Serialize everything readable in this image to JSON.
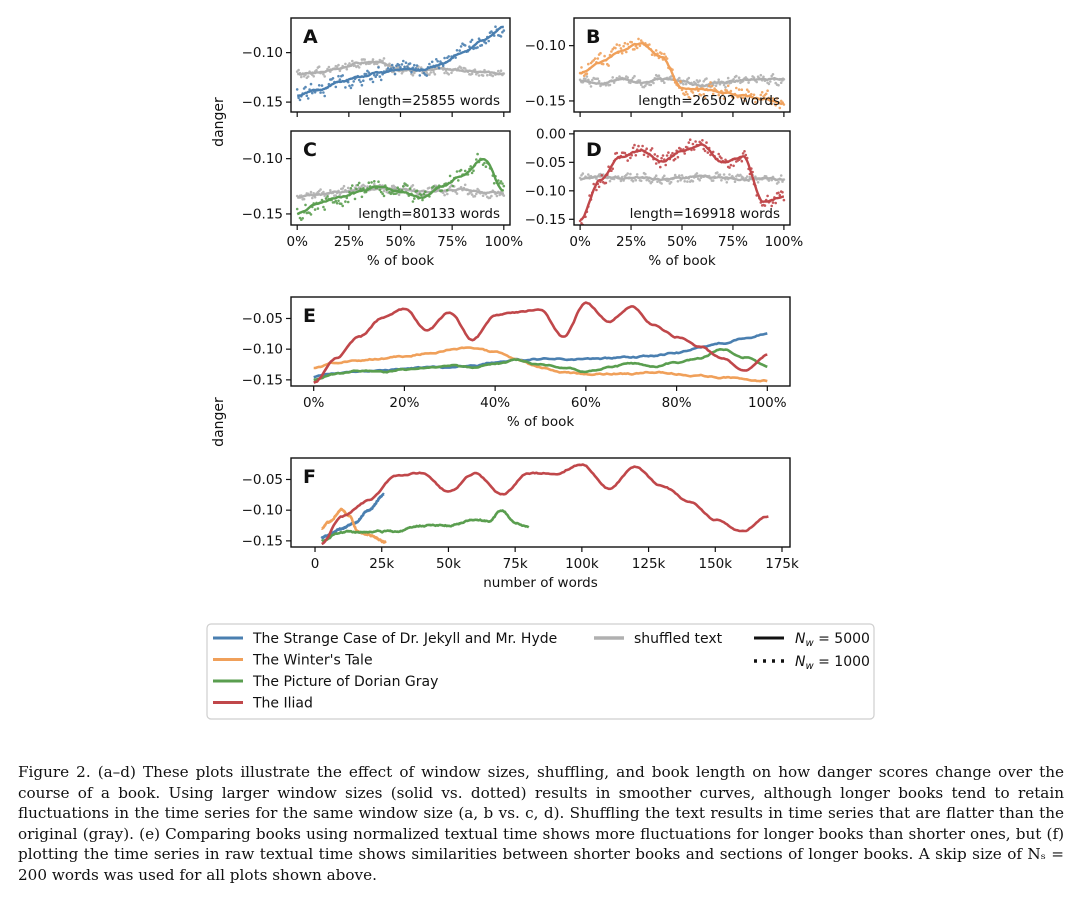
{
  "figure": {
    "ylabel_top": "danger",
    "ylabel_mid": "danger",
    "caption": "Figure 2. (a–d) These plots illustrate the effect of window sizes, shuffling, and book length on how danger scores change over the course of a book. Using larger window sizes (solid vs. dotted) results in smoother curves, although longer books tend to retain fluctuations in the time series for the same window size (a, b vs. c, d). Shuffling the text results in time series that are flatter than the original (gray). (e) Comparing books using normalized textual time shows more fluctuations for longer books than shorter ones, but (f) plotting the time series in raw textual time shows similarities between shorter books and sections of longer books. A skip size of Nₛ = 200 words was used for all plots shown above.",
    "legend": {
      "books": [
        {
          "label": "The Strange Case of Dr. Jekyll and Mr. Hyde",
          "color": "#4a7fb0"
        },
        {
          "label": "The Winter's Tale",
          "color": "#f0a05a"
        },
        {
          "label": "The Picture of Dorian Gray",
          "color": "#5a9e4f"
        },
        {
          "label": "The Iliad",
          "color": "#c0474a"
        }
      ],
      "shuffled": {
        "label": "shuffled text",
        "color": "#b0b0b0"
      },
      "solid": "N_w = 5000",
      "dotted": "N_w = 1000"
    }
  },
  "chart_data": [
    {
      "panel": "A",
      "type": "line",
      "note": "length=25855 words",
      "xlabel": "",
      "ylabel": "danger",
      "ylim": [
        -0.16,
        -0.065
      ],
      "x": [
        0,
        10,
        20,
        30,
        40,
        50,
        60,
        70,
        80,
        90,
        100
      ],
      "series": [
        {
          "name": "The Strange Case of Dr. Jekyll and Mr. Hyde",
          "values": [
            -0.143,
            -0.138,
            -0.13,
            -0.125,
            -0.12,
            -0.117,
            -0.117,
            -0.112,
            -0.1,
            -0.088,
            -0.074
          ]
        },
        {
          "name": "shuffled text",
          "values": [
            -0.122,
            -0.12,
            -0.116,
            -0.11,
            -0.11,
            -0.118,
            -0.118,
            -0.116,
            -0.118,
            -0.12,
            -0.121
          ]
        }
      ]
    },
    {
      "panel": "B",
      "type": "line",
      "note": "length=26502 words",
      "xlabel": "",
      "ylabel": "",
      "ylim": [
        -0.16,
        -0.075
      ],
      "x": [
        0,
        10,
        20,
        30,
        40,
        50,
        60,
        70,
        80,
        90,
        100
      ],
      "series": [
        {
          "name": "The Winter's Tale",
          "values": [
            -0.125,
            -0.115,
            -0.105,
            -0.098,
            -0.11,
            -0.138,
            -0.14,
            -0.142,
            -0.145,
            -0.148,
            -0.152
          ]
        },
        {
          "name": "shuffled text",
          "values": [
            -0.132,
            -0.134,
            -0.13,
            -0.133,
            -0.13,
            -0.132,
            -0.136,
            -0.133,
            -0.131,
            -0.13,
            -0.13
          ]
        }
      ]
    },
    {
      "panel": "C",
      "type": "line",
      "note": "length=80133 words",
      "xlabel": "% of book",
      "ylabel": "danger",
      "ylim": [
        -0.16,
        -0.075
      ],
      "x": [
        0,
        10,
        20,
        30,
        40,
        50,
        60,
        70,
        80,
        90,
        100
      ],
      "series": [
        {
          "name": "The Picture of Dorian Gray",
          "values": [
            -0.15,
            -0.14,
            -0.135,
            -0.13,
            -0.125,
            -0.13,
            -0.135,
            -0.125,
            -0.115,
            -0.1,
            -0.128
          ]
        },
        {
          "name": "shuffled text",
          "values": [
            -0.135,
            -0.133,
            -0.13,
            -0.128,
            -0.127,
            -0.128,
            -0.13,
            -0.129,
            -0.128,
            -0.13,
            -0.131
          ]
        }
      ]
    },
    {
      "panel": "D",
      "type": "line",
      "note": "length=169918 words",
      "xlabel": "% of book",
      "ylabel": "",
      "ylim": [
        -0.16,
        0.005
      ],
      "x": [
        0,
        10,
        20,
        30,
        40,
        50,
        60,
        70,
        80,
        90,
        100
      ],
      "series": [
        {
          "name": "The Iliad",
          "values": [
            -0.15,
            -0.08,
            -0.04,
            -0.03,
            -0.05,
            -0.03,
            -0.02,
            -0.05,
            -0.04,
            -0.12,
            -0.11
          ]
        },
        {
          "name": "shuffled text",
          "values": [
            -0.08,
            -0.075,
            -0.078,
            -0.076,
            -0.08,
            -0.078,
            -0.075,
            -0.077,
            -0.079,
            -0.078,
            -0.08
          ]
        }
      ]
    },
    {
      "panel": "E",
      "type": "line",
      "xlabel": "% of book",
      "ylabel": "danger",
      "ylim": [
        -0.16,
        -0.015
      ],
      "x": [
        0,
        5,
        10,
        15,
        20,
        25,
        30,
        35,
        40,
        45,
        50,
        55,
        60,
        65,
        70,
        75,
        80,
        85,
        90,
        95,
        100
      ],
      "series": [
        {
          "name": "The Strange Case of Dr. Jekyll and Mr. Hyde",
          "values": [
            -0.145,
            -0.14,
            -0.136,
            -0.135,
            -0.132,
            -0.13,
            -0.13,
            -0.127,
            -0.122,
            -0.118,
            -0.116,
            -0.116,
            -0.116,
            -0.115,
            -0.113,
            -0.111,
            -0.106,
            -0.097,
            -0.09,
            -0.082,
            -0.075
          ]
        },
        {
          "name": "The Winter's Tale",
          "values": [
            -0.13,
            -0.122,
            -0.118,
            -0.115,
            -0.112,
            -0.107,
            -0.101,
            -0.098,
            -0.105,
            -0.118,
            -0.13,
            -0.138,
            -0.14,
            -0.14,
            -0.14,
            -0.137,
            -0.14,
            -0.143,
            -0.146,
            -0.149,
            -0.152
          ]
        },
        {
          "name": "The Picture of Dorian Gray",
          "values": [
            -0.15,
            -0.14,
            -0.135,
            -0.138,
            -0.133,
            -0.13,
            -0.126,
            -0.13,
            -0.124,
            -0.118,
            -0.126,
            -0.13,
            -0.137,
            -0.13,
            -0.124,
            -0.128,
            -0.121,
            -0.115,
            -0.1,
            -0.113,
            -0.128
          ]
        },
        {
          "name": "The Iliad",
          "values": [
            -0.155,
            -0.115,
            -0.08,
            -0.05,
            -0.035,
            -0.07,
            -0.04,
            -0.085,
            -0.045,
            -0.04,
            -0.035,
            -0.08,
            -0.025,
            -0.055,
            -0.03,
            -0.06,
            -0.08,
            -0.095,
            -0.115,
            -0.135,
            -0.11
          ]
        }
      ]
    },
    {
      "panel": "F",
      "type": "line",
      "xlabel": "number of words",
      "ylabel": "",
      "ylim": [
        -0.16,
        -0.015
      ],
      "xticks": [
        "0",
        "25k",
        "50k",
        "75k",
        "100k",
        "125k",
        "150k",
        "175k"
      ],
      "series": [
        {
          "name": "The Strange Case of Dr. Jekyll and Mr. Hyde",
          "x": [
            2500,
            5000,
            10000,
            15000,
            20000,
            25855
          ],
          "values": [
            -0.145,
            -0.14,
            -0.13,
            -0.12,
            -0.1,
            -0.075
          ]
        },
        {
          "name": "The Winter's Tale",
          "x": [
            2500,
            5000,
            10000,
            13000,
            16000,
            20000,
            26502
          ],
          "values": [
            -0.13,
            -0.12,
            -0.1,
            -0.11,
            -0.135,
            -0.14,
            -0.152
          ]
        },
        {
          "name": "The Picture of Dorian Gray",
          "x": [
            2500,
            10000,
            20000,
            30000,
            40000,
            50000,
            60000,
            65000,
            70000,
            75000,
            80133
          ],
          "values": [
            -0.15,
            -0.135,
            -0.135,
            -0.135,
            -0.125,
            -0.125,
            -0.115,
            -0.118,
            -0.1,
            -0.12,
            -0.128
          ]
        },
        {
          "name": "The Iliad",
          "x": [
            2500,
            10000,
            20000,
            30000,
            40000,
            50000,
            60000,
            70000,
            80000,
            90000,
            100000,
            110000,
            120000,
            130000,
            140000,
            150000,
            160000,
            169918
          ],
          "values": [
            -0.155,
            -0.11,
            -0.085,
            -0.045,
            -0.04,
            -0.07,
            -0.04,
            -0.075,
            -0.04,
            -0.04,
            -0.025,
            -0.065,
            -0.03,
            -0.06,
            -0.085,
            -0.115,
            -0.135,
            -0.11
          ]
        }
      ]
    }
  ]
}
